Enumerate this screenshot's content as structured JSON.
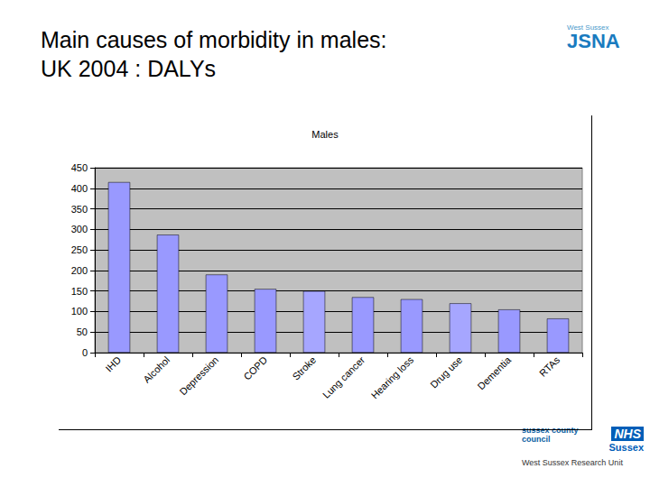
{
  "slide": {
    "heading": "Main causes of morbidity in males:\nUK 2004 : DALYs",
    "logo_top": [
      "West Sussex",
      "JSNA"
    ],
    "logo_bottom": {
      "council": "sussex county council",
      "nhs": [
        "NHS",
        "Sussex"
      ],
      "unit": "West Sussex Research Unit"
    }
  },
  "chart_data": {
    "type": "bar",
    "title": "Males",
    "categories": [
      "IHD",
      "Alcohol",
      "Depression",
      "COPD",
      "Stroke",
      "Lung cancer",
      "Hearing loss",
      "Drug use",
      "Dementia",
      "RTAs"
    ],
    "values": [
      415,
      287,
      190,
      155,
      150,
      135,
      130,
      120,
      105,
      83
    ],
    "colors": [
      "#9999ff",
      "#9999ff",
      "#9999ff",
      "#9999ff",
      "#a6a6ff",
      "#9999ff",
      "#9999ff",
      "#a6a6ff",
      "#9999ff",
      "#9999ff"
    ],
    "ylim": [
      0,
      450
    ],
    "yticks": [
      0,
      50,
      100,
      150,
      200,
      250,
      300,
      350,
      400,
      450
    ],
    "grid": true
  }
}
